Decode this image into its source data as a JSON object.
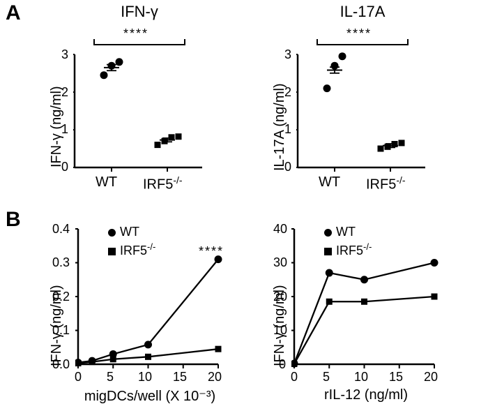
{
  "panelA": {
    "label": "A",
    "ifng": {
      "title": "IFN-γ",
      "sig": "****",
      "ylabel": "IFN-γ (ng/ml)",
      "ylim": [
        0,
        3
      ],
      "yticks": [
        0,
        1,
        2,
        3
      ],
      "categories": [
        "WT",
        "IRF5"
      ],
      "wt_points": [
        2.45,
        2.7,
        2.8
      ],
      "ko_points": [
        0.6,
        0.7,
        0.8,
        0.82
      ],
      "colors": {
        "marker": "#000000",
        "axis": "#000000"
      },
      "marker_size": 9
    },
    "il17a": {
      "title": "IL-17A",
      "sig": "****",
      "ylabel": "IL-17A (ng/ml)",
      "ylim": [
        0,
        3
      ],
      "yticks": [
        0,
        1,
        2,
        3
      ],
      "categories": [
        "WT",
        "IRF5"
      ],
      "wt_points": [
        2.1,
        2.7,
        2.95
      ],
      "ko_points": [
        0.5,
        0.55,
        0.62,
        0.65
      ],
      "colors": {
        "marker": "#000000",
        "axis": "#000000"
      },
      "marker_size": 9
    }
  },
  "panelB": {
    "label": "B",
    "migdc": {
      "ylabel": "IFN-γ (ng/ml)",
      "xlabel": "migDCs/well (X 10⁻³)",
      "sig": "****",
      "ylim": [
        0,
        0.4
      ],
      "yticks": [
        0.0,
        0.1,
        0.2,
        0.3,
        0.4
      ],
      "xlim": [
        0,
        20
      ],
      "xticks": [
        0,
        5,
        10,
        15,
        20
      ],
      "wt": {
        "x": [
          0,
          2,
          5,
          10,
          20
        ],
        "y": [
          0.005,
          0.01,
          0.03,
          0.058,
          0.31
        ]
      },
      "ko": {
        "x": [
          0,
          2,
          5,
          10,
          20
        ],
        "y": [
          0.003,
          0.007,
          0.015,
          0.022,
          0.045
        ]
      },
      "legend": {
        "wt": "WT",
        "ko": "IRF5"
      }
    },
    "ril12": {
      "ylabel": "IFN-γ (ng/ml)",
      "xlabel": "rIL-12 (ng/ml)",
      "ylim": [
        0,
        40
      ],
      "yticks": [
        0,
        10,
        20,
        30,
        40
      ],
      "xlim": [
        0,
        20
      ],
      "xticks": [
        0,
        5,
        10,
        15,
        20
      ],
      "wt": {
        "x": [
          0,
          5,
          10,
          20
        ],
        "y": [
          0.2,
          27,
          25,
          30
        ]
      },
      "ko": {
        "x": [
          0,
          5,
          10,
          20
        ],
        "y": [
          0.1,
          18.5,
          18.5,
          20
        ]
      }
    }
  },
  "style": {
    "axis_stroke": "#000000",
    "axis_width": 2,
    "line_width": 2.3,
    "font_tick": 18,
    "font_label": 20,
    "font_title": 22
  }
}
